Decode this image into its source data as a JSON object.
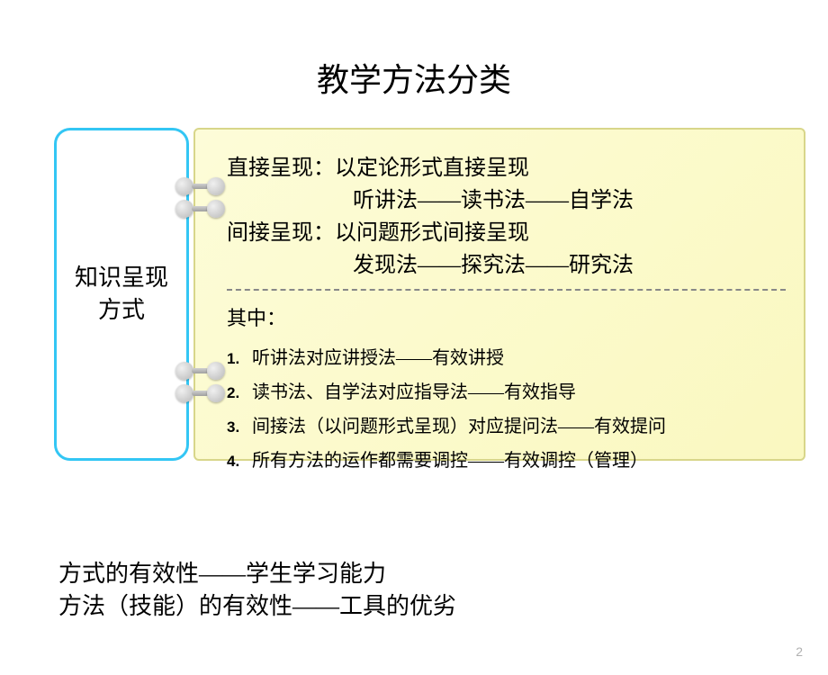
{
  "title": "教学方法分类",
  "leftBox": {
    "line1": "知识呈现",
    "line2": "方式"
  },
  "upper": {
    "line1": "直接呈现：以定论形式直接呈现",
    "line2": "听讲法——读书法——自学法",
    "line3": "间接呈现：以问题形式间接呈现",
    "line4": "发现法——探究法——研究法"
  },
  "lower": {
    "heading": "其中：",
    "items": [
      {
        "num": "1.",
        "text": "听讲法对应讲授法——有效讲授"
      },
      {
        "num": "2.",
        "text": "读书法、自学法对应指导法——有效指导"
      },
      {
        "num": "3.",
        "text": "间接法（以问题形式呈现）对应提问法——有效提问"
      },
      {
        "num": "4.",
        "text": "所有方法的运作都需要调控——有效调控（管理）"
      }
    ]
  },
  "bottom": {
    "line1": "方式的有效性——学生学习能力",
    "line2": "方法（技能）的有效性——工具的优劣"
  },
  "pageNumber": "2",
  "colors": {
    "borderBlue": "#33c6f4",
    "noteBg": "#fdfcd8",
    "text": "#000000"
  }
}
